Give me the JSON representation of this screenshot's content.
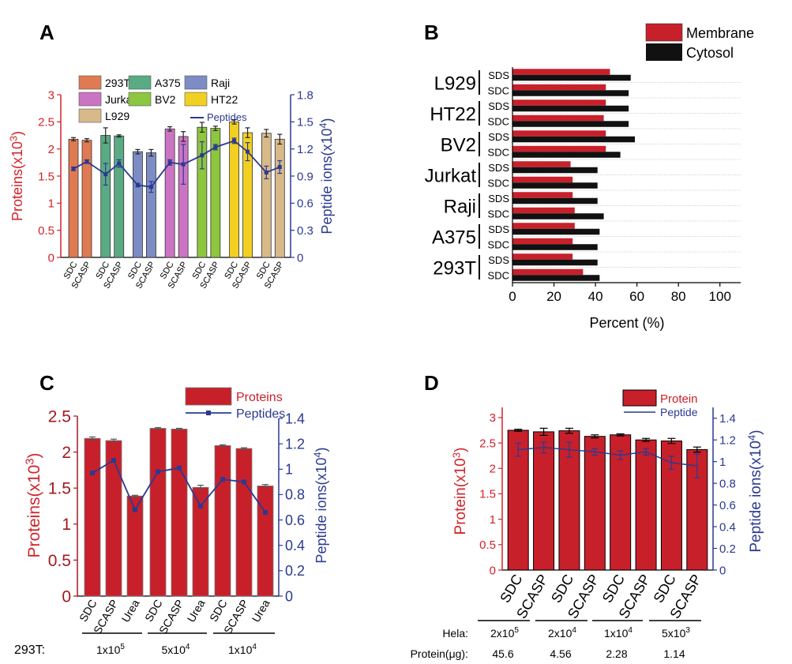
{
  "panels": {
    "A": {
      "letter": "A",
      "chart_data": {
        "type": "bar",
        "categories": [
          "SDC",
          "SCASP",
          "SDC",
          "SCASP",
          "SDC",
          "SCASP",
          "SDC",
          "SCASP",
          "SDC",
          "SCASP",
          "SDC",
          "SCASP",
          "SDC",
          "SCASP"
        ],
        "groups": [
          "293T",
          "A375",
          "Raji",
          "Jurkat",
          "BV2",
          "HT22",
          "L929"
        ],
        "group_colors": [
          "#e07a52",
          "#5aab83",
          "#7d8cc4",
          "#cc74c4",
          "#8dc63f",
          "#f2d021",
          "#d8b98a"
        ],
        "values": [
          2.18,
          2.16,
          2.25,
          2.24,
          1.95,
          1.93,
          2.37,
          2.23,
          2.4,
          2.38,
          2.5,
          2.3,
          2.29,
          2.18
        ],
        "errors": [
          0.03,
          0.03,
          0.14,
          0.02,
          0.04,
          0.06,
          0.04,
          0.09,
          0.09,
          0.04,
          0.04,
          0.09,
          0.07,
          0.09
        ],
        "peptides": [
          0.98,
          1.06,
          0.92,
          1.04,
          0.8,
          0.78,
          1.05,
          1.03,
          1.13,
          1.22,
          1.29,
          1.17,
          0.94,
          1.0
        ],
        "peptide_errors": [
          0.02,
          0.02,
          0.12,
          0.04,
          0.02,
          0.06,
          0.03,
          0.22,
          0.15,
          0.03,
          0.03,
          0.1,
          0.07,
          0.07
        ],
        "ylabel": "Proteins(x10",
        "ylabel_sup": "3",
        "ylabel_end": ")",
        "y2label": "Peptide ions(x10",
        "y2label_sup": "4",
        "y2label_end": ")",
        "ylim": [
          0,
          3
        ],
        "y2lim": [
          0,
          1.8
        ],
        "yticks": [
          "0",
          "0.5",
          "1",
          "1.5",
          "2",
          "2.5",
          "3"
        ],
        "y2ticks": [
          "0",
          "0.3",
          "0.6",
          "0.9",
          "1.2",
          "1.5",
          "1.8"
        ],
        "legend": [
          "293T",
          "A375",
          "Raji",
          "Jurkat",
          "BV2",
          "HT22",
          "L929"
        ],
        "line_legend": "Peptides"
      }
    },
    "B": {
      "letter": "B",
      "chart_data": {
        "type": "bar",
        "orientation": "horizontal",
        "cell_lines": [
          "L929",
          "HT22",
          "BV2",
          "Jurkat",
          "Raji",
          "A375",
          "293T"
        ],
        "row_labels": [
          "SDS",
          "SDC"
        ],
        "series": [
          {
            "name": "Membrane",
            "color": "#c8202a",
            "values": [
              47,
              45,
              45,
              44,
              45,
              45,
              28,
              29,
              29,
              30,
              30,
              29,
              29,
              34
            ]
          },
          {
            "name": "Cytosol",
            "color": "#111111",
            "values": [
              57,
              56,
              56,
              56,
              59,
              52,
              41,
              41,
              41,
              44,
              42,
              41,
              41,
              42
            ]
          }
        ],
        "xlabel": "Percent (%)",
        "xlim": [
          0,
          110
        ],
        "xticks": [
          "0",
          "20",
          "40",
          "60",
          "80",
          "100"
        ]
      }
    },
    "C": {
      "letter": "C",
      "chart_data": {
        "type": "bar",
        "categories": [
          "SDC",
          "SCASP",
          "Urea",
          "SDC",
          "SCASP",
          "Urea",
          "SDC",
          "SCASP",
          "Urea"
        ],
        "values": [
          2.19,
          2.16,
          1.39,
          2.33,
          2.32,
          1.51,
          2.09,
          2.05,
          1.53
        ],
        "errors": [
          0.02,
          0.02,
          0.01,
          0.01,
          0.01,
          0.03,
          0.01,
          0.01,
          0.02
        ],
        "peptides": [
          0.97,
          1.07,
          0.68,
          0.98,
          1.01,
          0.71,
          0.92,
          0.9,
          0.66
        ],
        "ylabel": "Proteins(x10",
        "ylabel_sup": "3",
        "ylabel_end": ")",
        "y2label": "Peptide ions(x10",
        "y2label_sup": "4",
        "y2label_end": ")",
        "ylim": [
          0,
          2.5
        ],
        "y2lim": [
          0,
          1.4
        ],
        "yticks": [
          "0",
          "0.5",
          "1",
          "1.5",
          "2",
          "2.5"
        ],
        "y2ticks": [
          "0",
          "0.2",
          "0.4",
          "0.6",
          "0.8",
          "1",
          "1.2",
          "1.4"
        ],
        "legend_bar": "Proteins",
        "legend_line": "Peptides",
        "row_label": "293T:",
        "group_labels": [
          {
            "base": "1x10",
            "sup": "5"
          },
          {
            "base": "5x10",
            "sup": "4"
          },
          {
            "base": "1x10",
            "sup": "4"
          }
        ]
      }
    },
    "D": {
      "letter": "D",
      "chart_data": {
        "type": "bar",
        "categories": [
          "SDC",
          "SCASP",
          "SDC",
          "SCASP",
          "SDC",
          "SCASP",
          "SDC",
          "SCASP"
        ],
        "values": [
          2.75,
          2.72,
          2.74,
          2.63,
          2.66,
          2.56,
          2.54,
          2.37
        ],
        "errors": [
          0.02,
          0.07,
          0.05,
          0.03,
          0.02,
          0.03,
          0.05,
          0.05
        ],
        "peptides": [
          1.11,
          1.13,
          1.11,
          1.09,
          1.06,
          1.09,
          0.99,
          0.96
        ],
        "peptide_errors": [
          0.06,
          0.05,
          0.07,
          0.03,
          0.04,
          0.03,
          0.06,
          0.11
        ],
        "ylabel": "Protein(x10",
        "ylabel_sup": "3",
        "ylabel_end": ")",
        "y2label": "Peptide ions(x10",
        "y2label_sup": "4",
        "y2label_end": ")",
        "ylim": [
          0,
          3.2
        ],
        "y2lim": [
          0,
          1.5
        ],
        "yticks": [
          "0",
          "0.5",
          "1",
          "1.5",
          "2",
          "2.5",
          "3"
        ],
        "y2ticks": [
          "0",
          "0.2",
          "0.4",
          "0.6",
          "0.8",
          "1",
          "1.2",
          "1.4"
        ],
        "legend_bar": "Protein",
        "legend_line": "Peptide",
        "row1_label": "Hela:",
        "row2_label": "Protein(μg):",
        "hela": [
          {
            "base": "2x10",
            "sup": "5"
          },
          {
            "base": "2x10",
            "sup": "4"
          },
          {
            "base": "1x10",
            "sup": "4"
          },
          {
            "base": "5x10",
            "sup": "3"
          }
        ],
        "protein_ug": [
          "45.6",
          "4.56",
          "2.28",
          "1.14"
        ]
      }
    }
  }
}
